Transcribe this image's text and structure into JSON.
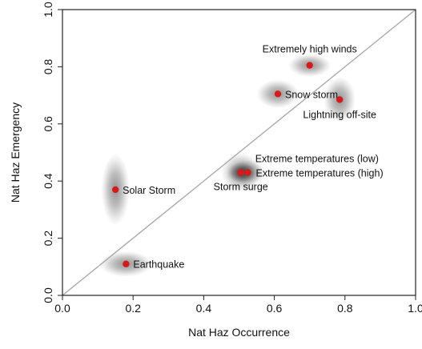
{
  "chart_data": {
    "type": "scatter",
    "title": "",
    "xlabel": "Nat Haz Occurrence",
    "ylabel": "Nat Haz Emergency",
    "xlim": [
      0.0,
      1.0
    ],
    "ylim": [
      0.0,
      1.0
    ],
    "xticks": [
      "0.0",
      "0.2",
      "0.4",
      "0.6",
      "0.8",
      "1.0"
    ],
    "yticks": [
      "0.0",
      "0.2",
      "0.4",
      "0.6",
      "0.8",
      "1.0"
    ],
    "grid": false,
    "legend": "none",
    "reference_line": {
      "from": [
        0.0,
        0.0
      ],
      "to": [
        1.0,
        1.0
      ],
      "color": "#aaaaaa"
    },
    "point_color": "#d61a1a",
    "points": [
      {
        "label": "Extremely high winds",
        "x": 0.7,
        "y": 0.805,
        "sx": 0.06,
        "sy": 0.04
      },
      {
        "label": "Snow storm",
        "x": 0.61,
        "y": 0.705,
        "sx": 0.06,
        "sy": 0.05
      },
      {
        "label": "Lightning off-site",
        "x": 0.785,
        "y": 0.685,
        "sx": 0.045,
        "sy": 0.08
      },
      {
        "label": "Extreme temperatures (low)",
        "x": 0.505,
        "y": 0.43,
        "sx": 0.055,
        "sy": 0.07
      },
      {
        "label": "Extreme temperatures (high)",
        "x": 0.525,
        "y": 0.43,
        "sx": 0.05,
        "sy": 0.045
      },
      {
        "label": "Storm surge",
        "x": 0.505,
        "y": 0.43,
        "sx": 0.04,
        "sy": 0.035
      },
      {
        "label": "Solar Storm",
        "x": 0.15,
        "y": 0.37,
        "sx": 0.04,
        "sy": 0.125
      },
      {
        "label": "Earthquake",
        "x": 0.18,
        "y": 0.11,
        "sx": 0.075,
        "sy": 0.045
      }
    ]
  }
}
